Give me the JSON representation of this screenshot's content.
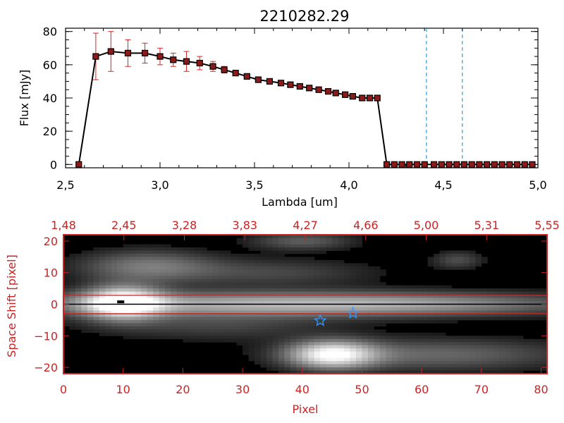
{
  "chart_data": [
    {
      "type": "line",
      "title": "2210282.29",
      "xlabel": "Lambda [um]",
      "ylabel": "Flux [mJy]",
      "xlim": [
        2.5,
        5.0
      ],
      "ylim": [
        -2,
        82
      ],
      "xticks": [
        "2.5",
        "3.0",
        "3.5",
        "4.0",
        "4.5",
        "5.0"
      ],
      "yticks": [
        "0",
        "20",
        "40",
        "60",
        "80"
      ],
      "grid": false,
      "line_color": "#000000",
      "marker_color": "#8b1a1a",
      "error_bar_color": "#dd2222",
      "vline_color": "#3399dd",
      "vlines": [
        4.41,
        4.6
      ],
      "series": [
        {
          "x": [
            2.57,
            2.66,
            2.74,
            2.83,
            2.92,
            3.0,
            3.07,
            3.14,
            3.21,
            3.28,
            3.34,
            3.4,
            3.46,
            3.52,
            3.58,
            3.64,
            3.69,
            3.74,
            3.79,
            3.84,
            3.89,
            3.93,
            3.98,
            4.02,
            4.07,
            4.11,
            4.15,
            4.2,
            4.24,
            4.28,
            4.32,
            4.36,
            4.4,
            4.45,
            4.49,
            4.53,
            4.57,
            4.61,
            4.65,
            4.69,
            4.73,
            4.77,
            4.81,
            4.85,
            4.89,
            4.93,
            4.97
          ],
          "values": [
            0,
            65,
            68,
            67,
            67,
            65,
            63,
            62,
            61,
            59,
            57,
            55,
            53,
            51,
            50,
            49,
            48,
            47,
            46,
            45,
            44,
            43,
            42,
            41,
            40,
            40,
            40,
            0,
            0,
            0,
            0,
            0,
            0,
            0,
            0,
            0,
            0,
            0,
            0,
            0,
            0,
            0,
            0,
            0,
            0,
            0,
            0
          ],
          "errors": [
            0,
            14,
            12,
            8,
            6,
            5,
            4,
            6,
            4,
            3,
            2,
            1,
            1,
            1,
            1,
            1,
            1,
            1,
            1,
            1,
            1,
            1,
            1,
            1,
            1,
            1,
            1,
            0,
            0,
            0,
            0,
            0,
            0,
            0,
            0,
            0,
            0,
            0,
            0,
            0,
            0,
            0,
            0,
            0,
            0,
            0,
            0
          ]
        }
      ]
    },
    {
      "type": "heatmap",
      "xlabel": "Pixel",
      "ylabel": "Space Shift [pixel]",
      "xlim": [
        0,
        81
      ],
      "ylim": [
        -22,
        22
      ],
      "xticks": [
        "0",
        "10",
        "20",
        "30",
        "40",
        "50",
        "60",
        "70",
        "80"
      ],
      "yticks": [
        "-20",
        "-10",
        "0",
        "10",
        "20"
      ],
      "top_axis_ticks": [
        "1.48",
        "2.45",
        "3.28",
        "3.83",
        "4.27",
        "4.66",
        "5.00",
        "5.31",
        "5.55"
      ],
      "axis_color": "#cc2222",
      "aperture_lines": [
        2.8,
        -3.0
      ],
      "center_line": 0,
      "star_color": "#3399ff",
      "stars": [
        {
          "x": 43,
          "y": -5.2
        },
        {
          "x": 48.5,
          "y": -2.8
        }
      ],
      "sources": [
        {
          "x": 10,
          "y": 0.5,
          "sx": 4.5,
          "sy": 3.5,
          "peak": 1.0
        },
        {
          "x": 28,
          "y": 0,
          "sx": 26,
          "sy": 2.8,
          "peak": 0.55
        },
        {
          "x": 45,
          "y": -16,
          "sx": 5,
          "sy": 3,
          "peak": 0.9
        },
        {
          "x": 62,
          "y": -16,
          "sx": 16,
          "sy": 3.5,
          "peak": 0.32
        },
        {
          "x": 14,
          "y": 12,
          "sx": 8,
          "sy": 3.5,
          "peak": 0.38
        },
        {
          "x": 35,
          "y": 10,
          "sx": 12,
          "sy": 3,
          "peak": 0.2
        },
        {
          "x": 40,
          "y": 20,
          "sx": 6,
          "sy": 2,
          "peak": 0.28
        },
        {
          "x": 62,
          "y": 0,
          "sx": 20,
          "sy": 2.5,
          "peak": 0.32
        },
        {
          "x": 25,
          "y": -7,
          "sx": 14,
          "sy": 3,
          "peak": 0.18
        },
        {
          "x": 66,
          "y": 14,
          "sx": 3,
          "sy": 2,
          "peak": 0.22
        }
      ]
    }
  ]
}
